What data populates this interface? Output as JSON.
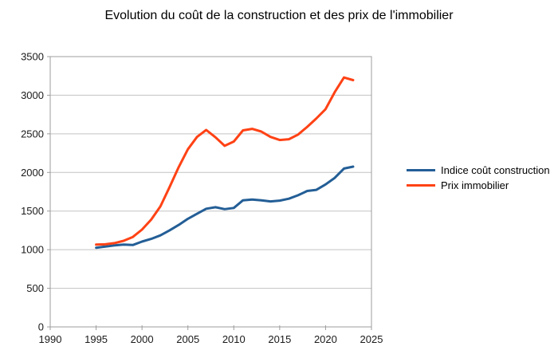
{
  "chart_data": {
    "type": "line",
    "title": "Evolution du coût de la construction et des prix de l'immobilier",
    "x": [
      1995,
      1996,
      1997,
      1998,
      1999,
      2000,
      2001,
      2002,
      2003,
      2004,
      2005,
      2006,
      2007,
      2008,
      2009,
      2010,
      2011,
      2012,
      2013,
      2014,
      2015,
      2016,
      2017,
      2018,
      2019,
      2020,
      2021,
      2022,
      2023
    ],
    "series": [
      {
        "name": "Indice coût construction",
        "color": "#235e96",
        "values": [
          1025,
          1040,
          1055,
          1065,
          1060,
          1105,
          1140,
          1185,
          1250,
          1320,
          1400,
          1465,
          1530,
          1550,
          1525,
          1540,
          1640,
          1650,
          1640,
          1625,
          1635,
          1660,
          1705,
          1760,
          1775,
          1845,
          1930,
          2050,
          2075
        ]
      },
      {
        "name": "Prix immobilier",
        "color": "#ff4215",
        "values": [
          1065,
          1070,
          1085,
          1115,
          1165,
          1260,
          1390,
          1560,
          1810,
          2070,
          2300,
          2460,
          2550,
          2455,
          2345,
          2400,
          2545,
          2565,
          2530,
          2460,
          2420,
          2430,
          2490,
          2590,
          2700,
          2820,
          3040,
          3230,
          3195
        ]
      }
    ],
    "xlim": [
      1990,
      2025
    ],
    "ylim": [
      0,
      3500
    ],
    "x_ticks": [
      1990,
      1995,
      2000,
      2005,
      2010,
      2015,
      2020,
      2025
    ],
    "y_ticks": [
      0,
      500,
      1000,
      1500,
      2000,
      2500,
      3000,
      3500
    ],
    "grid": "horizontal",
    "legend_position": "right",
    "xlabel": "",
    "ylabel": ""
  },
  "style_colors": {
    "gridline": "#c3c3c3",
    "axis_border": "#9c9c9c",
    "tick_label": "#1a1a1a"
  }
}
